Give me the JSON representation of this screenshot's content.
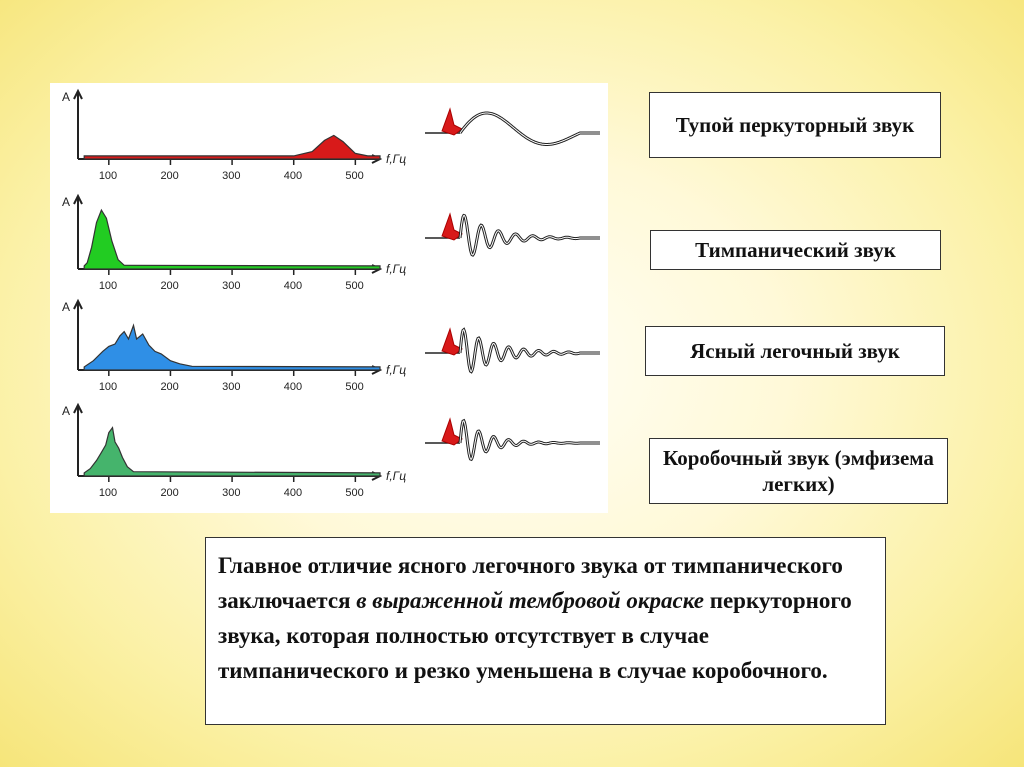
{
  "labels": {
    "dull": "Тупой перкуторный звук",
    "tympanic": "Тимпанический звук",
    "clear": "Ясный легочный звук",
    "box": "Коробочный звук (эмфизема легких)"
  },
  "note": {
    "part1": "Главное отличие ясного легочного звука от тимпанического заключается ",
    "italic": "в выраженной тембровой окраске",
    "part2": " перкуторного звука, которая полностью отсутствует в случае тимпанического и резко уменьшена в случае коробочного."
  },
  "chart_data": [
    {
      "type": "area",
      "name": "dull-spectrum",
      "ylabel": "A",
      "xlabel": "f,Гц",
      "x_ticks": [
        100,
        200,
        300,
        400,
        500
      ],
      "xlim": [
        50,
        540
      ],
      "ylim": [
        0,
        1
      ],
      "color": "#d81a1a",
      "points": [
        [
          60,
          0.05
        ],
        [
          400,
          0.05
        ],
        [
          430,
          0.12
        ],
        [
          450,
          0.3
        ],
        [
          465,
          0.38
        ],
        [
          480,
          0.28
        ],
        [
          500,
          0.09
        ],
        [
          520,
          0.05
        ],
        [
          540,
          0.05
        ]
      ]
    },
    {
      "type": "area",
      "name": "tympanic-spectrum",
      "ylabel": "A",
      "xlabel": "f,Гц",
      "x_ticks": [
        100,
        200,
        300,
        400,
        500
      ],
      "xlim": [
        50,
        540
      ],
      "ylim": [
        0,
        1
      ],
      "color": "#22cc22",
      "points": [
        [
          60,
          0.05
        ],
        [
          65,
          0.1
        ],
        [
          72,
          0.35
        ],
        [
          80,
          0.75
        ],
        [
          88,
          0.95
        ],
        [
          96,
          0.82
        ],
        [
          105,
          0.45
        ],
        [
          115,
          0.15
        ],
        [
          125,
          0.06
        ],
        [
          540,
          0.05
        ]
      ]
    },
    {
      "type": "area",
      "name": "clear-spectrum",
      "ylabel": "A",
      "xlabel": "f,Гц",
      "x_ticks": [
        100,
        200,
        300,
        400,
        500
      ],
      "xlim": [
        50,
        540
      ],
      "ylim": [
        0,
        1
      ],
      "color": "#2f8fe6",
      "points": [
        [
          60,
          0.05
        ],
        [
          75,
          0.15
        ],
        [
          90,
          0.3
        ],
        [
          100,
          0.38
        ],
        [
          110,
          0.42
        ],
        [
          118,
          0.55
        ],
        [
          125,
          0.62
        ],
        [
          132,
          0.5
        ],
        [
          140,
          0.72
        ],
        [
          145,
          0.5
        ],
        [
          155,
          0.58
        ],
        [
          165,
          0.4
        ],
        [
          175,
          0.3
        ],
        [
          185,
          0.26
        ],
        [
          200,
          0.15
        ],
        [
          215,
          0.1
        ],
        [
          235,
          0.06
        ],
        [
          540,
          0.05
        ]
      ]
    },
    {
      "type": "area",
      "name": "box-spectrum",
      "ylabel": "A",
      "xlabel": "f,Гц",
      "x_ticks": [
        100,
        200,
        300,
        400,
        500
      ],
      "xlim": [
        50,
        540
      ],
      "ylim": [
        0,
        1
      ],
      "color": "#45b46c",
      "points": [
        [
          60,
          0.05
        ],
        [
          70,
          0.12
        ],
        [
          80,
          0.25
        ],
        [
          88,
          0.38
        ],
        [
          95,
          0.5
        ],
        [
          100,
          0.7
        ],
        [
          106,
          0.78
        ],
        [
          110,
          0.55
        ],
        [
          116,
          0.45
        ],
        [
          122,
          0.3
        ],
        [
          130,
          0.15
        ],
        [
          140,
          0.07
        ],
        [
          540,
          0.05
        ]
      ]
    }
  ],
  "waveforms": [
    {
      "name": "dull-waveform",
      "cycles": 1,
      "decay": 0.9
    },
    {
      "name": "tympanic-waveform",
      "cycles": 7,
      "decay": 0.25
    },
    {
      "name": "clear-waveform",
      "cycles": 8,
      "decay": 0.28
    },
    {
      "name": "box-waveform",
      "cycles": 8,
      "decay": 0.2
    }
  ]
}
